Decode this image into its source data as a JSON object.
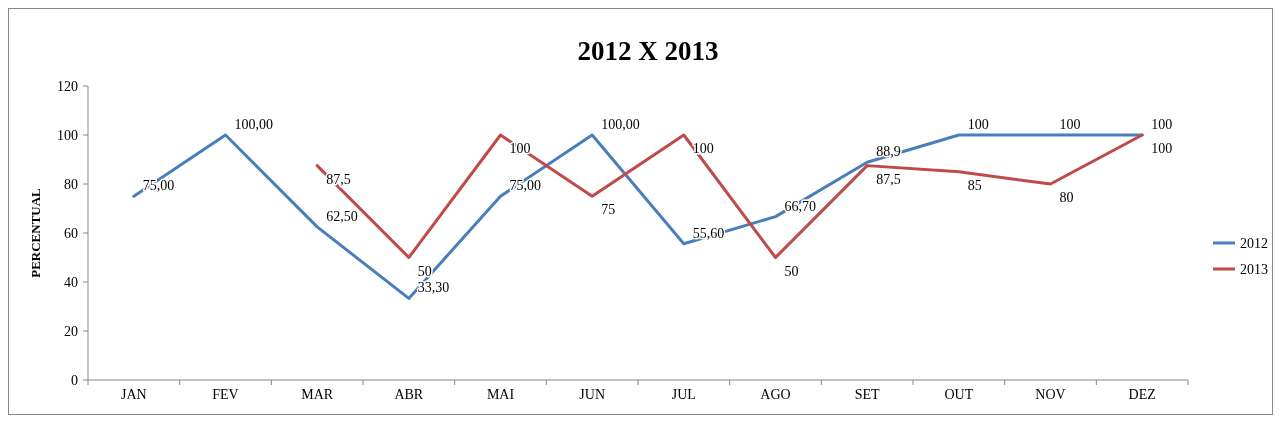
{
  "chart_data": {
    "type": "line",
    "title": "2012 X 2013",
    "ylabel": "PERCENTUAL",
    "categories": [
      "JAN",
      "FEV",
      "MAR",
      "ABR",
      "MAI",
      "JUN",
      "JUL",
      "AGO",
      "SET",
      "OUT",
      "NOV",
      "DEZ"
    ],
    "series": [
      {
        "name": "2012",
        "color": "#4a7ebb",
        "values": [
          75,
          100,
          62.5,
          33.3,
          75,
          100,
          55.6,
          66.7,
          88.9,
          100,
          100,
          100
        ],
        "value_labels": [
          "75,00",
          "100,00",
          "62,50",
          "33,30",
          "75,00",
          "100,00",
          "55,60",
          "66,70",
          "88,9",
          "100",
          "100",
          "100"
        ]
      },
      {
        "name": "2013",
        "color": "#be4b48",
        "values": [
          null,
          null,
          87.5,
          50,
          100,
          75,
          100,
          50,
          87.5,
          85,
          80,
          100
        ],
        "value_labels": [
          null,
          null,
          "87,5",
          "50",
          "100",
          "75",
          "100",
          "50",
          "87,5",
          "85",
          "80",
          "100"
        ]
      }
    ],
    "ylim": [
      0,
      120
    ],
    "yticks": [
      0,
      20,
      40,
      60,
      80,
      100,
      120
    ],
    "grid": false,
    "legend": "right",
    "marker": "none",
    "line_style": "solid"
  }
}
